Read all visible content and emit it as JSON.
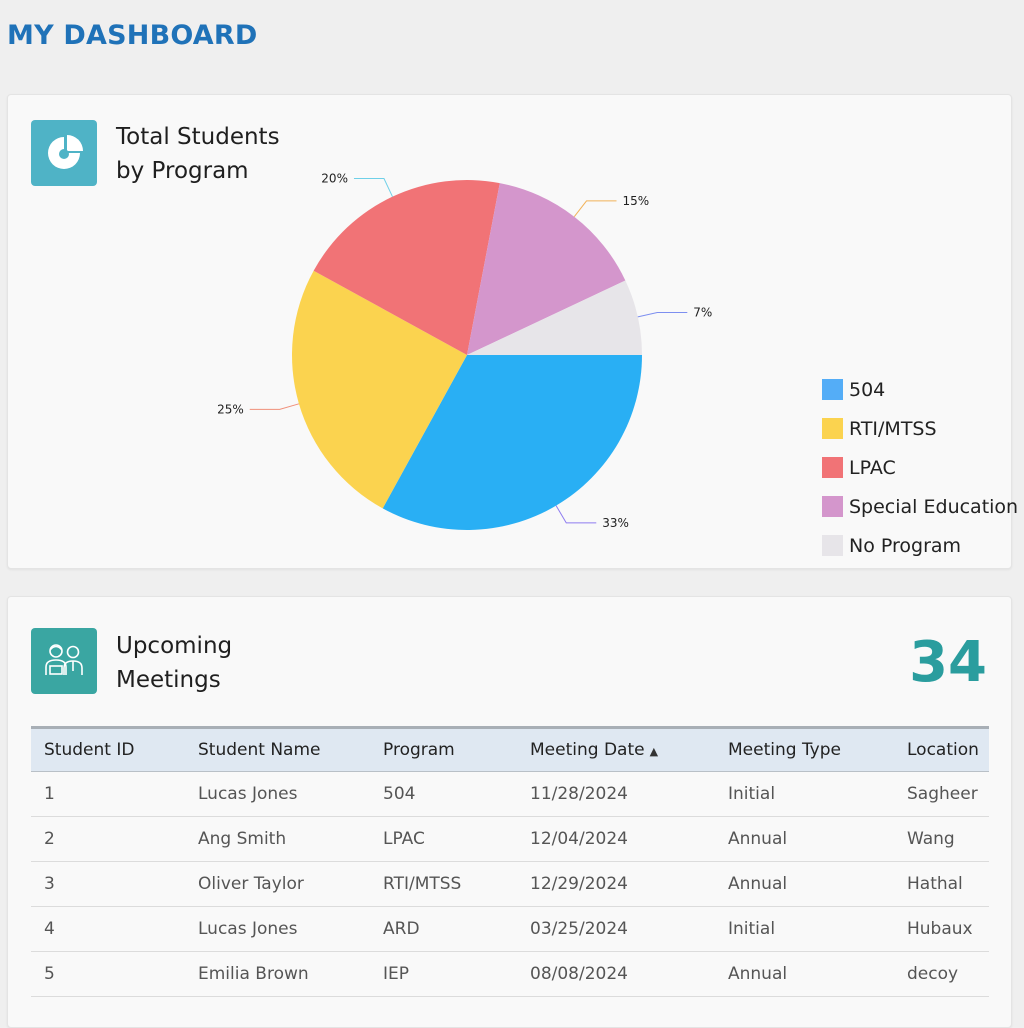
{
  "page": {
    "title": "MY DASHBOARD"
  },
  "program_card": {
    "title": "Total Students\nby Program",
    "icon": "pie-chart-icon",
    "icon_color": "#4fb3c6"
  },
  "chart_data": {
    "type": "pie",
    "slices": [
      {
        "label": "504",
        "value": 33,
        "display": "33%",
        "color": "#29aff4"
      },
      {
        "label": "RTI/MTSS",
        "value": 25,
        "display": "25%",
        "color": "#fbd34f"
      },
      {
        "label": "LPAC",
        "value": 20,
        "display": "20%",
        "color": "#f17376"
      },
      {
        "label": "Special Education",
        "value": 15,
        "display": "15%",
        "color": "#d496cc"
      },
      {
        "label": "No Program",
        "value": 7,
        "display": "7%",
        "color": "#e7e5e9"
      }
    ],
    "legend_position": "right"
  },
  "legend": [
    {
      "label": "504",
      "color": "#54adf7"
    },
    {
      "label": "RTI/MTSS",
      "color": "#fbd34f"
    },
    {
      "label": "LPAC",
      "color": "#f17376"
    },
    {
      "label": "Special Education",
      "color": "#d496cc"
    },
    {
      "label": "No Program",
      "color": "#e7e5e9"
    }
  ],
  "meetings_card": {
    "title": "Upcoming\nMeetings",
    "icon": "meeting-people-icon",
    "icon_color": "#3aa6a2",
    "count": "34"
  },
  "meetings_table": {
    "columns": [
      "Student ID",
      "Student Name",
      "Program",
      "Meeting Date",
      "Meeting Type",
      "Location"
    ],
    "rows": [
      [
        "1",
        "Lucas Jones",
        "504",
        "11/28/2024",
        "Initial",
        "Sagheer"
      ],
      [
        "2",
        "Ang Smith",
        "LPAC",
        "12/04/2024",
        "Annual",
        "Wang"
      ],
      [
        "3",
        "Oliver Taylor",
        "RTI/MTSS",
        "12/29/2024",
        "Annual",
        "Hathal"
      ],
      [
        "4",
        "Lucas Jones",
        "ARD",
        "03/25/2024",
        "Initial",
        "Hubaux"
      ],
      [
        "5",
        "Emilia Brown",
        "IEP",
        "08/08/2024",
        "Annual",
        "decoy"
      ]
    ]
  }
}
